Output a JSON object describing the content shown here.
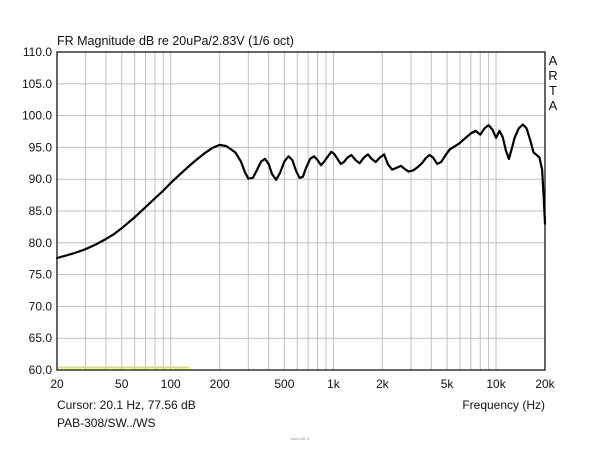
{
  "chart_data": {
    "type": "line",
    "title": "FR Magnitude dB re 20uPa/2.83V (1/6 oct)",
    "xlabel": "Frequency (Hz)",
    "ylabel": "",
    "x_scale": "log",
    "xlim": [
      20,
      20000
    ],
    "ylim": [
      60,
      110
    ],
    "grid": true,
    "x_ticks": [
      20,
      50,
      100,
      200,
      500,
      1000,
      2000,
      5000,
      10000,
      20000
    ],
    "x_tick_labels": [
      "20",
      "50",
      "100",
      "200",
      "500",
      "1k",
      "2k",
      "5k",
      "10k",
      "20k"
    ],
    "y_ticks": [
      60,
      65,
      70,
      75,
      80,
      85,
      90,
      95,
      100,
      105,
      110
    ],
    "y_tick_labels": [
      "60.0",
      "65.0",
      "70.0",
      "75.0",
      "80.0",
      "85.0",
      "90.0",
      "95.0",
      "100.0",
      "105.0",
      "110.0"
    ],
    "series": [
      {
        "color": "#000000",
        "points": [
          [
            20,
            77.6
          ],
          [
            25,
            78.3
          ],
          [
            30,
            79.0
          ],
          [
            35,
            79.8
          ],
          [
            40,
            80.6
          ],
          [
            45,
            81.4
          ],
          [
            50,
            82.3
          ],
          [
            60,
            84.0
          ],
          [
            70,
            85.6
          ],
          [
            80,
            87.0
          ],
          [
            90,
            88.2
          ],
          [
            100,
            89.4
          ],
          [
            110,
            90.4
          ],
          [
            125,
            91.7
          ],
          [
            140,
            92.8
          ],
          [
            160,
            94.0
          ],
          [
            180,
            94.9
          ],
          [
            200,
            95.4
          ],
          [
            220,
            95.2
          ],
          [
            250,
            94.2
          ],
          [
            270,
            92.8
          ],
          [
            285,
            91.2
          ],
          [
            300,
            90.1
          ],
          [
            320,
            90.2
          ],
          [
            340,
            91.5
          ],
          [
            360,
            92.8
          ],
          [
            380,
            93.2
          ],
          [
            400,
            92.4
          ],
          [
            420,
            90.8
          ],
          [
            445,
            89.9
          ],
          [
            470,
            91.0
          ],
          [
            500,
            92.8
          ],
          [
            530,
            93.6
          ],
          [
            560,
            93.0
          ],
          [
            590,
            91.3
          ],
          [
            620,
            90.2
          ],
          [
            650,
            90.4
          ],
          [
            680,
            91.8
          ],
          [
            720,
            93.2
          ],
          [
            760,
            93.6
          ],
          [
            800,
            93.0
          ],
          [
            840,
            92.2
          ],
          [
            880,
            92.8
          ],
          [
            920,
            93.5
          ],
          [
            970,
            94.3
          ],
          [
            1010,
            94.0
          ],
          [
            1060,
            93.2
          ],
          [
            1110,
            92.4
          ],
          [
            1160,
            92.7
          ],
          [
            1220,
            93.4
          ],
          [
            1290,
            93.8
          ],
          [
            1370,
            93.0
          ],
          [
            1450,
            92.5
          ],
          [
            1540,
            93.4
          ],
          [
            1630,
            93.9
          ],
          [
            1720,
            93.2
          ],
          [
            1820,
            92.7
          ],
          [
            1930,
            93.4
          ],
          [
            2050,
            93.9
          ],
          [
            2170,
            92.3
          ],
          [
            2300,
            91.5
          ],
          [
            2450,
            91.8
          ],
          [
            2600,
            92.1
          ],
          [
            2750,
            91.6
          ],
          [
            2900,
            91.2
          ],
          [
            3100,
            91.4
          ],
          [
            3300,
            91.9
          ],
          [
            3500,
            92.5
          ],
          [
            3700,
            93.3
          ],
          [
            3900,
            93.8
          ],
          [
            4100,
            93.4
          ],
          [
            4350,
            92.4
          ],
          [
            4600,
            92.7
          ],
          [
            4900,
            93.8
          ],
          [
            5200,
            94.7
          ],
          [
            5600,
            95.2
          ],
          [
            6000,
            95.7
          ],
          [
            6500,
            96.5
          ],
          [
            7000,
            97.2
          ],
          [
            7500,
            97.6
          ],
          [
            8000,
            97.0
          ],
          [
            8500,
            98.0
          ],
          [
            9000,
            98.5
          ],
          [
            9500,
            97.8
          ],
          [
            10000,
            96.5
          ],
          [
            10500,
            97.6
          ],
          [
            11000,
            96.6
          ],
          [
            11500,
            94.5
          ],
          [
            12000,
            93.2
          ],
          [
            12500,
            94.8
          ],
          [
            13000,
            96.5
          ],
          [
            13800,
            98.0
          ],
          [
            14600,
            98.6
          ],
          [
            15400,
            98.0
          ],
          [
            16200,
            96.2
          ],
          [
            17000,
            94.2
          ],
          [
            17800,
            93.8
          ],
          [
            18500,
            93.4
          ],
          [
            19200,
            91.5
          ],
          [
            19600,
            87.5
          ],
          [
            20000,
            83.0
          ]
        ]
      }
    ],
    "annotations": {
      "cursor": "Cursor: 20.1 Hz, 77.56 dB",
      "model": "PAB-308/SW../WS",
      "brand": [
        "A",
        "R",
        "T",
        "A"
      ],
      "footer": "www.hifi.pl"
    },
    "cursor_marker": {
      "color": "#e5e04a",
      "x_range": [
        20,
        130
      ],
      "y": 60.4
    },
    "colors": {
      "background": "#ffffff",
      "grid": "#c0c0c0",
      "axes": "#000000",
      "line": "#000000",
      "cursor": "#e5e04a"
    }
  }
}
